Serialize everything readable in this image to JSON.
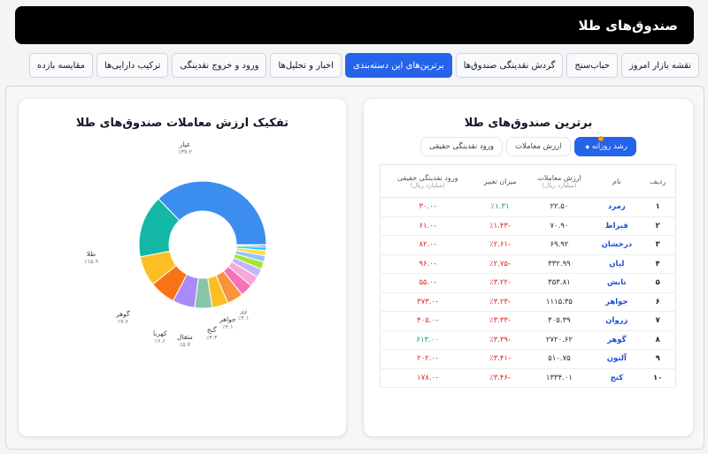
{
  "header": {
    "title": "صندوق‌های طلا"
  },
  "tabs": [
    {
      "label": "نقشه بازار امروز",
      "active": false
    },
    {
      "label": "حباب‌سنج",
      "active": false
    },
    {
      "label": "گردش نقدینگی صندوق‌ها",
      "active": false
    },
    {
      "label": "برترین‌های این دسته‌بندی",
      "active": true
    },
    {
      "label": "اخبار و تحلیل‌ها",
      "active": false
    },
    {
      "label": "ورود و خروج نقدینگی",
      "active": false
    },
    {
      "label": "ترکیب دارایی‌ها",
      "active": false
    },
    {
      "label": "مقایسه بازده",
      "active": false
    }
  ],
  "top_funds": {
    "title": "برترین صندوق‌های طلا",
    "pills": [
      {
        "label": "رشد روزانه",
        "active": true,
        "icon": "sort-arrow-icon"
      },
      {
        "label": "ارزش معاملات",
        "active": false
      },
      {
        "label": "ورود نقدینگی حقیقی",
        "active": false
      }
    ],
    "columns": {
      "rank": "ردیف",
      "name": "نام",
      "value": "ارزش معاملات",
      "value_unit": "(میلیارد ریال)",
      "change": "میزان تغییر",
      "inflow": "ورود نقدینگی حقیقی",
      "inflow_unit": "(میلیارد ریال)"
    },
    "rows": [
      {
        "rank": "۱",
        "name": "زمرد",
        "value": "۲۲.۵۰",
        "change": "٪۱.۳۱",
        "inflow": "-۳۰.۰",
        "change_color": "pos",
        "inflow_color": "neg"
      },
      {
        "rank": "۲",
        "name": "قیراط",
        "value": "۷۰.۹۰",
        "change": "-٪۱.۴۳",
        "inflow": "-۶۱.۰",
        "change_color": "neg",
        "inflow_color": "neg"
      },
      {
        "rank": "۳",
        "name": "درخشان",
        "value": "۶۹.۹۲",
        "change": "-٪۲.۶۱",
        "inflow": "-۸۲.۰",
        "change_color": "neg",
        "inflow_color": "neg"
      },
      {
        "rank": "۴",
        "name": "لیان",
        "value": "۳۳۲.۹۹",
        "change": "-٪۲.۷۵",
        "inflow": "-۹۶.۰",
        "change_color": "neg",
        "inflow_color": "neg"
      },
      {
        "rank": "۵",
        "name": "تابش",
        "value": "۳۵۳.۸۱",
        "change": "-٪۳.۲۲",
        "inflow": "-۵۵.۰",
        "change_color": "neg",
        "inflow_color": "neg"
      },
      {
        "rank": "۶",
        "name": "جواهر",
        "value": "۱۱۱۵.۳۵",
        "change": "-٪۳.۲۳",
        "inflow": "-۳۷۳.۰",
        "change_color": "neg",
        "inflow_color": "neg"
      },
      {
        "rank": "۷",
        "name": "زروان",
        "value": "۳۰۵.۳۹",
        "change": "-٪۳.۳۳",
        "inflow": "-۴۰۵.۰",
        "change_color": "neg",
        "inflow_color": "neg"
      },
      {
        "rank": "۸",
        "name": "گوهر",
        "value": "۲۷۲۰.۶۲",
        "change": "-٪۳.۳۹",
        "inflow": "۶۱۳.۰۰",
        "change_color": "neg",
        "inflow_color": "pos"
      },
      {
        "rank": "۹",
        "name": "آلتون",
        "value": "۵۱۰.۷۵",
        "change": "-٪۳.۴۱",
        "inflow": "-۲۰۲.۰",
        "change_color": "neg",
        "inflow_color": "neg"
      },
      {
        "rank": "۱۰",
        "name": "کنج",
        "value": "۱۳۳۴.۰۱",
        "change": "-٪۳.۴۶",
        "inflow": "-۱۷۸.۰",
        "change_color": "neg",
        "inflow_color": "neg"
      }
    ]
  },
  "breakdown": {
    "title": "تفکیک ارزش معاملات صندوق‌های طلا",
    "labels": [
      {
        "name": "عیار",
        "value": "٪۳۷.۲"
      },
      {
        "name": "طلا",
        "value": "٪۱۵.۹"
      },
      {
        "name": "گوهر",
        "value": "٪۷.۶"
      },
      {
        "name": "کهربا",
        "value": "٪۶.۶"
      },
      {
        "name": "مثقال",
        "value": "٪۵.۷"
      },
      {
        "name": "گنج",
        "value": "٪۴.۴"
      },
      {
        "name": "جواهر",
        "value": "٪۴.۱"
      },
      {
        "name": "زر",
        "value": "٪۴.۱"
      }
    ]
  },
  "chart_data": {
    "type": "pie",
    "title": "تفکیک ارزش معاملات صندوق‌های طلا",
    "categories": [
      "عیار",
      "طلا",
      "گوهر",
      "کهربا",
      "مثقال",
      "گنج",
      "جواهر",
      "زر",
      "",
      "",
      "",
      "",
      "",
      "",
      "",
      "",
      ""
    ],
    "values": [
      37.2,
      15.9,
      7.6,
      6.6,
      5.7,
      4.4,
      4.1,
      4.1,
      3.2,
      2.7,
      2.2,
      1.9,
      1.6,
      1.3,
      0.9,
      0.4,
      0.2
    ],
    "colors": [
      "#3b8ef0",
      "#14b8a6",
      "#fbbf24",
      "#f97316",
      "#a78bfa",
      "#86c5a8",
      "#fbbf24",
      "#fb923c",
      "#f472b6",
      "#f9a8d4",
      "#c4b5fd",
      "#a3e635",
      "#93c5fd",
      "#fde047",
      "#22d3ee",
      "#1e40af",
      "#94a3b8"
    ],
    "donut": true,
    "half": true
  }
}
